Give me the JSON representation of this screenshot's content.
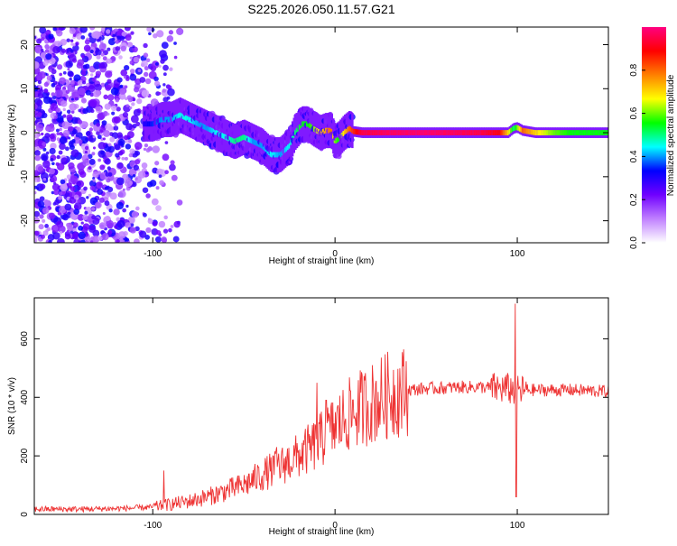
{
  "title": "S225.2026.050.11.57.G21",
  "chart_data": [
    {
      "type": "heatmap",
      "xlabel": "Height of straight line (km)",
      "ylabel": "Frequency (Hz)",
      "xlim": [
        -165,
        150
      ],
      "ylim": [
        -25,
        24
      ],
      "xticks": [
        -100,
        0,
        100
      ],
      "yticks": [
        -20,
        -10,
        0,
        10,
        20
      ],
      "ridge": {
        "x": [
          -105,
          -100,
          -95,
          -90,
          -85,
          -80,
          -75,
          -70,
          -65,
          -60,
          -55,
          -50,
          -45,
          -40,
          -35,
          -30,
          -25,
          -22,
          -18,
          -15,
          -12,
          -8,
          -5,
          -2,
          0,
          2,
          5,
          8,
          10,
          15,
          20,
          30,
          50,
          80,
          90,
          95,
          98,
          100,
          103,
          110,
          120,
          130,
          150
        ],
        "y": [
          2,
          2,
          3,
          3,
          4,
          3,
          2,
          1,
          0,
          -1,
          -2,
          -1,
          -2,
          -3,
          -5,
          -5,
          -3,
          0,
          2,
          2,
          1,
          0,
          0.5,
          0.5,
          -2,
          -1.5,
          0,
          1,
          0.3,
          0,
          0,
          0,
          0,
          0,
          0,
          0,
          1,
          1.2,
          0.5,
          0,
          0,
          0,
          0
        ],
        "amplitude": [
          0.3,
          0.35,
          0.4,
          0.4,
          0.45,
          0.45,
          0.4,
          0.4,
          0.45,
          0.45,
          0.5,
          0.5,
          0.4,
          0.4,
          0.45,
          0.4,
          0.45,
          0.5,
          0.55,
          0.55,
          0.6,
          0.7,
          0.75,
          0.8,
          0.6,
          0.55,
          0.7,
          0.8,
          0.85,
          0.95,
          0.95,
          0.97,
          0.98,
          0.95,
          0.9,
          0.7,
          0.5,
          0.6,
          0.8,
          0.7,
          0.6,
          0.55,
          0.55
        ]
      },
      "colorbar": {
        "label": "Normalized spectral amplitude",
        "ticks": [
          "0.0",
          "0.2",
          "0.4",
          "0.6",
          "0.8"
        ],
        "colors": [
          "#ffffff",
          "#c080ff",
          "#7000ff",
          "#0000ff",
          "#00ffff",
          "#00ff00",
          "#ffff00",
          "#ff8000",
          "#ff0000",
          "#ff0080"
        ]
      }
    },
    {
      "type": "line",
      "xlabel": "Height of straight line (km)",
      "ylabel": "SNR (10 * v/v)",
      "xlim": [
        -165,
        150
      ],
      "ylim": [
        0,
        740
      ],
      "xticks": [
        -100,
        0,
        100
      ],
      "yticks": [
        0,
        200,
        400,
        600
      ],
      "color": "#ee3333",
      "trend": {
        "x": [
          -165,
          -140,
          -120,
          -110,
          -100,
          -90,
          -80,
          -70,
          -60,
          -50,
          -40,
          -30,
          -20,
          -10,
          0,
          10,
          20,
          30,
          40,
          50,
          60,
          70,
          80,
          90,
          95,
          100,
          105,
          110,
          120,
          130,
          150
        ],
        "y": [
          18,
          18,
          20,
          22,
          25,
          35,
          45,
          60,
          80,
          100,
          135,
          165,
          200,
          240,
          300,
          350,
          380,
          410,
          425,
          430,
          432,
          435,
          435,
          430,
          430,
          420,
          425,
          425,
          425,
          425,
          420
        ]
      },
      "spikes": [
        {
          "x": -94,
          "y": 150
        },
        {
          "x": -32,
          "y": 230
        },
        {
          "x": -10,
          "y": 450
        },
        {
          "x": -5,
          "y": 390
        },
        {
          "x": 99,
          "y": 720
        },
        {
          "x": 99.5,
          "y": 60
        }
      ]
    }
  ]
}
